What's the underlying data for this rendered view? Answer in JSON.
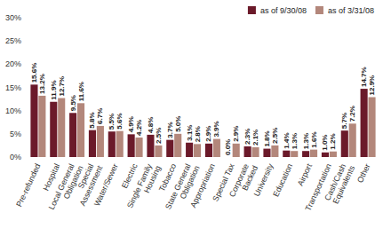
{
  "chart_data": {
    "type": "bar",
    "categories": [
      "Pre-refunded",
      "Hospital",
      "Local General Obligation",
      "Special Assessment",
      "Water/Sewer",
      "Electric",
      "Single Family Housing",
      "Tobacco",
      "State General Obligation",
      "Appropriation",
      "Special Tax",
      "Corporate Backed",
      "University",
      "Education",
      "Airport",
      "Transportation",
      "Cash/Cash Equivalents",
      "Other"
    ],
    "series": [
      {
        "name": "as of 9/30/08",
        "color": "#6b1a2a",
        "values": [
          15.6,
          11.9,
          9.5,
          5.8,
          5.5,
          4.9,
          4.8,
          3.7,
          3.1,
          2.9,
          0.0,
          2.3,
          1.8,
          1.4,
          1.3,
          1.0,
          5.7,
          14.7
        ],
        "value_labels": [
          "15.6%",
          "11.9%",
          "9.5%",
          "5.8%",
          "5.5%",
          "4.9%",
          "4.8%",
          "3.7%",
          "3.1%",
          "2.9%",
          "0.0%",
          "2.3%",
          "1.8%",
          "1.4%",
          "1.3%",
          "1.0%",
          "5.7%",
          "14.7%"
        ]
      },
      {
        "name": "as of 3/31/08",
        "color": "#b3877b",
        "values": [
          13.2,
          12.7,
          11.6,
          6.7,
          5.6,
          4.2,
          2.5,
          5.0,
          2.8,
          3.9,
          2.9,
          2.1,
          2.5,
          1.3,
          1.6,
          1.2,
          7.2,
          12.9
        ],
        "value_labels": [
          "13.2%",
          "12.7%",
          "11.6%",
          "6.7%",
          "5.6%",
          "4.2%",
          "2.5%",
          "5.0%",
          "2.8%",
          "3.9%",
          "2.9%",
          "2.1%",
          "2.5%",
          "1.3%",
          "1.6%",
          "1.2%",
          "7.2%",
          "12.9%"
        ]
      }
    ],
    "ylim": [
      0,
      30
    ],
    "yticks": [
      {
        "value": 0,
        "label": "0%"
      },
      {
        "value": 5,
        "label": "5%"
      },
      {
        "value": 10,
        "label": "10%"
      },
      {
        "value": 15,
        "label": "15%"
      },
      {
        "value": 20,
        "label": "20%"
      },
      {
        "value": 25,
        "label": "25%"
      },
      {
        "value": 30,
        "label": "30%"
      }
    ],
    "grid": false,
    "legend": "top-right",
    "data_labels": true
  }
}
